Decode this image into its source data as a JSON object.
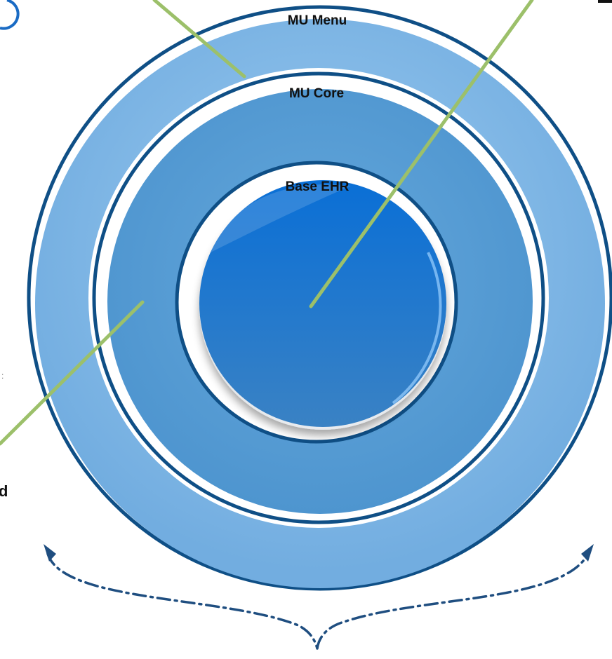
{
  "labels": {
    "mu_menu": "MU Menu",
    "mu_core": "MU Core",
    "base_ehr": "Base EHR",
    "left_edge_fragment": "d"
  },
  "colors": {
    "navy_stroke": "#0f4f86",
    "outer_ring": "#7db6e4",
    "middle_ring": "#5a9fd4",
    "center_top": "#0a6fd6",
    "center_bottom": "#3a82c4",
    "connector_line": "#9cc06a",
    "brace": "#1f4e80"
  },
  "icons": {
    "brace": "dash-dot-brace-icon",
    "arrowheads": "arrowhead-icon",
    "top_right_mark": "corner-dash-mark"
  }
}
